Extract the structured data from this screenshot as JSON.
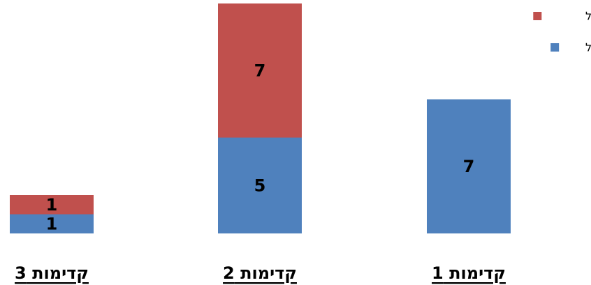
{
  "chart_data": {
    "type": "bar",
    "stacked": true,
    "categories": [
      "קדימות 1",
      "קדימות 2",
      "קדימות 3"
    ],
    "series": [
      {
        "name": "טופל",
        "values": [
          7,
          5,
          1
        ],
        "color": "#4F81BD"
      },
      {
        "name": "לא טופל",
        "values": [
          0,
          7,
          1
        ],
        "color": "#C0504D"
      }
    ],
    "ylim": [
      0,
      12
    ],
    "grid": false,
    "axes_visible": false,
    "legend": "top-right",
    "show_zero_labels": false
  }
}
